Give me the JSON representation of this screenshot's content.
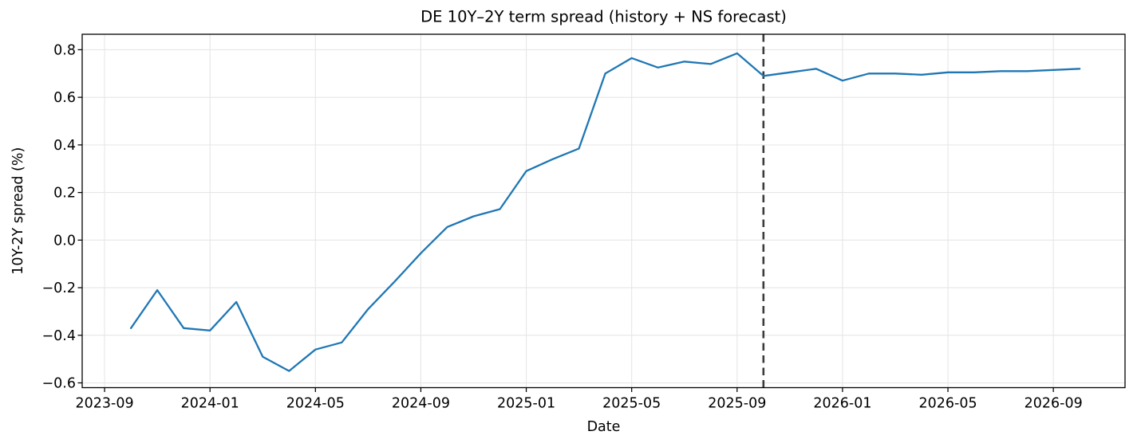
{
  "chart_data": {
    "type": "line",
    "title": "DE 10Y–2Y term spread (history + NS forecast)",
    "xlabel": "Date",
    "ylabel": "10Y-2Y spread (%)",
    "x_origin_month": "2023-09",
    "x_tick_labels": [
      "2023-09",
      "2024-01",
      "2024-05",
      "2024-09",
      "2025-01",
      "2025-05",
      "2025-09",
      "2026-01",
      "2026-05",
      "2026-09"
    ],
    "y_ticks": [
      -0.6,
      -0.4,
      -0.2,
      0.0,
      0.2,
      0.4,
      0.6,
      0.8
    ],
    "ylim": [
      -0.62,
      0.865
    ],
    "xlim_months_offset": [
      -0.85,
      38.72
    ],
    "grid": true,
    "legend": "none",
    "forecast_start": "2025-10",
    "series": [
      {
        "name": "history",
        "dates": [
          "2023-10",
          "2023-11",
          "2023-12",
          "2024-01",
          "2024-02",
          "2024-03",
          "2024-04",
          "2024-05",
          "2024-06",
          "2024-07",
          "2024-08",
          "2024-09",
          "2024-10",
          "2024-11",
          "2024-12",
          "2025-01",
          "2025-02",
          "2025-03",
          "2025-04",
          "2025-05",
          "2025-06",
          "2025-07",
          "2025-08",
          "2025-09",
          "2025-10"
        ],
        "values": [
          -0.37,
          -0.21,
          -0.37,
          -0.38,
          -0.26,
          -0.49,
          -0.55,
          -0.46,
          -0.43,
          -0.29,
          -0.175,
          -0.055,
          0.055,
          0.1,
          0.13,
          0.29,
          0.34,
          0.385,
          0.7,
          0.765,
          0.725,
          0.75,
          0.74,
          0.785,
          0.69
        ]
      },
      {
        "name": "forecast",
        "dates": [
          "2025-10",
          "2025-11",
          "2025-12",
          "2026-01",
          "2026-02",
          "2026-03",
          "2026-04",
          "2026-05",
          "2026-06",
          "2026-07",
          "2026-08",
          "2026-09",
          "2026-10"
        ],
        "values": [
          0.69,
          0.705,
          0.72,
          0.67,
          0.7,
          0.7,
          0.695,
          0.705,
          0.705,
          0.71,
          0.71,
          0.715,
          0.72
        ]
      }
    ],
    "colors": {
      "line": "#1f77b4",
      "forecast_divider": "#3b3b3b",
      "grid": "#e6e6e6",
      "spine": "#000000",
      "background": "#ffffff"
    }
  }
}
